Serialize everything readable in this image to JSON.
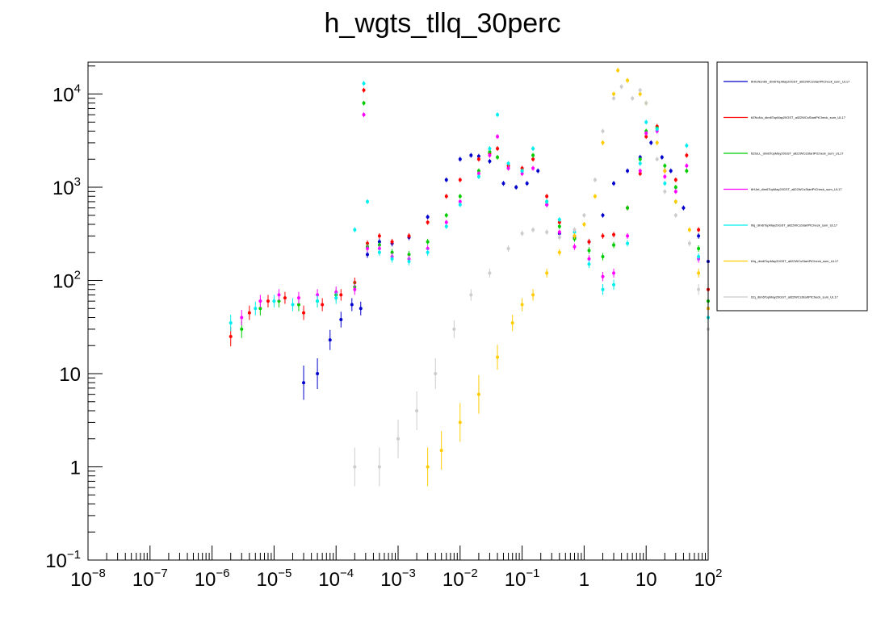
{
  "chart_data": {
    "type": "scatter",
    "title": "h_wgts_tllq_30perc",
    "xlabel": "",
    "ylabel": "",
    "xscale": "log",
    "yscale": "log",
    "xlim": [
      1e-08,
      100
    ],
    "ylim": [
      0.1,
      22000
    ],
    "grid": false,
    "legend_position": "right",
    "x_ticks": [
      {
        "value": 1e-08,
        "base": "10",
        "exp": "−8"
      },
      {
        "value": 1e-07,
        "base": "10",
        "exp": "−7"
      },
      {
        "value": 1e-06,
        "base": "10",
        "exp": "−6"
      },
      {
        "value": 1e-05,
        "base": "10",
        "exp": "−5"
      },
      {
        "value": 0.0001,
        "base": "10",
        "exp": "−4"
      },
      {
        "value": 0.001,
        "base": "10",
        "exp": "−3"
      },
      {
        "value": 0.01,
        "base": "10",
        "exp": "−2"
      },
      {
        "value": 0.1,
        "base": "10",
        "exp": "−1"
      },
      {
        "value": 1,
        "base": "1",
        "exp": ""
      },
      {
        "value": 10,
        "base": "10",
        "exp": ""
      },
      {
        "value": 100,
        "base": "10",
        "exp": "2"
      }
    ],
    "y_ticks": [
      {
        "value": 0.1,
        "base": "10",
        "exp": "−1"
      },
      {
        "value": 1,
        "base": "1",
        "exp": ""
      },
      {
        "value": 10,
        "base": "10",
        "exp": ""
      },
      {
        "value": 100,
        "base": "10",
        "exp": "2"
      },
      {
        "value": 1000,
        "base": "10",
        "exp": "3"
      },
      {
        "value": 10000,
        "base": "10",
        "exp": "4"
      }
    ],
    "series": [
      {
        "legend": "ttHtoNonbb_dim6TopMay20GST_all22WCsStartPtCheck_sum_UL17",
        "color": "#0000cc",
        "points": [
          [
            3e-05,
            8
          ],
          [
            5e-05,
            10
          ],
          [
            8e-05,
            23
          ],
          [
            0.00012,
            38
          ],
          [
            0.00018,
            55
          ],
          [
            0.00025,
            50
          ],
          [
            0.00032,
            190
          ],
          [
            0.0005,
            260
          ],
          [
            0.0008,
            250
          ],
          [
            0.0015,
            290
          ],
          [
            0.003,
            480
          ],
          [
            0.006,
            1200
          ],
          [
            0.01,
            2000
          ],
          [
            0.015,
            2200
          ],
          [
            0.02,
            2150
          ],
          [
            0.03,
            1900
          ],
          [
            0.05,
            1100
          ],
          [
            0.08,
            1000
          ],
          [
            0.12,
            1100
          ],
          [
            0.18,
            1500
          ],
          [
            0.25,
            650
          ],
          [
            0.4,
            320
          ],
          [
            0.7,
            290
          ],
          [
            1.2,
            260
          ],
          [
            2,
            500
          ],
          [
            3,
            1100
          ],
          [
            5,
            1500
          ],
          [
            8,
            2100
          ],
          [
            12,
            3000
          ],
          [
            18,
            2100
          ],
          [
            25,
            1500
          ],
          [
            40,
            600
          ],
          [
            70,
            300
          ],
          [
            100,
            160
          ]
        ]
      },
      {
        "legend": "ttZNuNu_dim6TopMay20GST_all22WCsStartPtCheck_sum_UL17",
        "color": "#ff0000",
        "points": [
          [
            2e-06,
            25
          ],
          [
            4e-06,
            45
          ],
          [
            8e-06,
            60
          ],
          [
            1.5e-05,
            65
          ],
          [
            3e-05,
            45
          ],
          [
            6e-05,
            55
          ],
          [
            0.00012,
            70
          ],
          [
            0.0002,
            95
          ],
          [
            0.00028,
            11000
          ],
          [
            0.00032,
            250
          ],
          [
            0.0005,
            300
          ],
          [
            0.0008,
            260
          ],
          [
            0.0015,
            300
          ],
          [
            0.003,
            420
          ],
          [
            0.006,
            800
          ],
          [
            0.01,
            1200
          ],
          [
            0.02,
            2000
          ],
          [
            0.03,
            2300
          ],
          [
            0.04,
            2600
          ],
          [
            0.06,
            1700
          ],
          [
            0.1,
            1600
          ],
          [
            0.15,
            2000
          ],
          [
            0.25,
            800
          ],
          [
            0.4,
            420
          ],
          [
            0.7,
            300
          ],
          [
            1.2,
            260
          ],
          [
            2,
            300
          ],
          [
            3,
            310
          ],
          [
            5,
            600
          ],
          [
            8,
            1400
          ],
          [
            10,
            3500
          ],
          [
            15,
            4500
          ],
          [
            20,
            1500
          ],
          [
            30,
            1200
          ],
          [
            45,
            2200
          ],
          [
            70,
            350
          ],
          [
            100,
            80
          ]
        ]
      },
      {
        "legend": "ttZtoLL_dim6TopMay20GST_all22WCsStartPtCheck_sum_UL17",
        "color": "#00cc00",
        "points": [
          [
            3e-06,
            30
          ],
          [
            6e-06,
            50
          ],
          [
            1.2e-05,
            60
          ],
          [
            2.5e-05,
            55
          ],
          [
            5e-05,
            60
          ],
          [
            0.0001,
            70
          ],
          [
            0.0002,
            85
          ],
          [
            0.00028,
            8000
          ],
          [
            0.00032,
            230
          ],
          [
            0.0005,
            240
          ],
          [
            0.0008,
            200
          ],
          [
            0.0015,
            190
          ],
          [
            0.003,
            260
          ],
          [
            0.006,
            500
          ],
          [
            0.01,
            800
          ],
          [
            0.02,
            1500
          ],
          [
            0.03,
            2400
          ],
          [
            0.04,
            2100
          ],
          [
            0.06,
            1600
          ],
          [
            0.1,
            1500
          ],
          [
            0.15,
            2200
          ],
          [
            0.25,
            700
          ],
          [
            0.4,
            380
          ],
          [
            0.7,
            280
          ],
          [
            1.2,
            210
          ],
          [
            2,
            180
          ],
          [
            3,
            240
          ],
          [
            5,
            600
          ],
          [
            8,
            2000
          ],
          [
            10,
            4000
          ],
          [
            15,
            4300
          ],
          [
            20,
            1700
          ],
          [
            30,
            1000
          ],
          [
            45,
            1500
          ],
          [
            70,
            220
          ],
          [
            100,
            60
          ]
        ]
      },
      {
        "legend": "ttHJet_dim6TopMay20GST_all22WCsStartPtCheck_sum_UL17",
        "color": "#ff00ff",
        "points": [
          [
            3e-06,
            40
          ],
          [
            6e-06,
            60
          ],
          [
            1.2e-05,
            70
          ],
          [
            2.5e-05,
            65
          ],
          [
            5e-05,
            70
          ],
          [
            0.0001,
            75
          ],
          [
            0.0002,
            80
          ],
          [
            0.00028,
            6000
          ],
          [
            0.00032,
            220
          ],
          [
            0.0005,
            220
          ],
          [
            0.0008,
            180
          ],
          [
            0.0015,
            170
          ],
          [
            0.003,
            220
          ],
          [
            0.006,
            420
          ],
          [
            0.01,
            700
          ],
          [
            0.02,
            1400
          ],
          [
            0.03,
            2200
          ],
          [
            0.04,
            3500
          ],
          [
            0.06,
            1600
          ],
          [
            0.1,
            1400
          ],
          [
            0.15,
            1600
          ],
          [
            0.25,
            650
          ],
          [
            0.4,
            330
          ],
          [
            0.7,
            230
          ],
          [
            1.2,
            170
          ],
          [
            2,
            110
          ],
          [
            3,
            120
          ],
          [
            5,
            300
          ],
          [
            8,
            1500
          ],
          [
            10,
            3800
          ],
          [
            15,
            4000
          ],
          [
            20,
            1300
          ],
          [
            30,
            900
          ],
          [
            45,
            1700
          ],
          [
            70,
            170
          ],
          [
            100,
            50
          ]
        ]
      },
      {
        "legend": "tllq_dim6TopMay20GST_all22WCsStartPtCheck_sum_UL17",
        "color": "#00eeee",
        "points": [
          [
            2e-06,
            35
          ],
          [
            5e-06,
            50
          ],
          [
            1e-05,
            60
          ],
          [
            2e-05,
            55
          ],
          [
            5e-05,
            60
          ],
          [
            0.0001,
            65
          ],
          [
            0.0002,
            350
          ],
          [
            0.00028,
            13000
          ],
          [
            0.00032,
            700
          ],
          [
            0.0005,
            200
          ],
          [
            0.0008,
            170
          ],
          [
            0.0015,
            160
          ],
          [
            0.003,
            200
          ],
          [
            0.006,
            380
          ],
          [
            0.01,
            650
          ],
          [
            0.02,
            1300
          ],
          [
            0.03,
            2600
          ],
          [
            0.04,
            6000
          ],
          [
            0.06,
            1800
          ],
          [
            0.1,
            1500
          ],
          [
            0.15,
            2600
          ],
          [
            0.25,
            700
          ],
          [
            0.4,
            450
          ],
          [
            0.7,
            330
          ],
          [
            1.2,
            150
          ],
          [
            2,
            80
          ],
          [
            3,
            90
          ],
          [
            5,
            250
          ],
          [
            8,
            1800
          ],
          [
            10,
            5000
          ],
          [
            15,
            4200
          ],
          [
            20,
            1100
          ],
          [
            30,
            700
          ],
          [
            45,
            2800
          ],
          [
            70,
            180
          ],
          [
            100,
            40
          ]
        ]
      },
      {
        "legend": "tHq_dim6TopMay20GST_all22WCsStartPtCheck_sum_UL17",
        "color": "#ffcc00",
        "points": [
          [
            0.003,
            1
          ],
          [
            0.005,
            1.5
          ],
          [
            0.01,
            3
          ],
          [
            0.02,
            6
          ],
          [
            0.04,
            15
          ],
          [
            0.07,
            35
          ],
          [
            0.1,
            55
          ],
          [
            0.15,
            70
          ],
          [
            0.25,
            120
          ],
          [
            0.4,
            200
          ],
          [
            0.7,
            300
          ],
          [
            1,
            400
          ],
          [
            1.5,
            800
          ],
          [
            2,
            3000
          ],
          [
            3,
            10000
          ],
          [
            3.5,
            18000
          ],
          [
            5,
            14000
          ],
          [
            8,
            10000
          ],
          [
            10,
            8000
          ],
          [
            15,
            3000
          ],
          [
            20,
            1500
          ],
          [
            30,
            700
          ],
          [
            50,
            350
          ],
          [
            70,
            120
          ],
          [
            100,
            50
          ]
        ]
      },
      {
        "legend": "tZq_dim6TopMay20GST_all22WCsStartPtCheck_sum_UL17",
        "color": "#cccccc",
        "points": [
          [
            0.0002,
            1
          ],
          [
            0.0005,
            1
          ],
          [
            0.001,
            2
          ],
          [
            0.002,
            4
          ],
          [
            0.004,
            10
          ],
          [
            0.008,
            30
          ],
          [
            0.015,
            70
          ],
          [
            0.03,
            120
          ],
          [
            0.06,
            220
          ],
          [
            0.1,
            320
          ],
          [
            0.15,
            350
          ],
          [
            0.25,
            330
          ],
          [
            0.4,
            290
          ],
          [
            0.7,
            350
          ],
          [
            1,
            500
          ],
          [
            1.5,
            1200
          ],
          [
            2,
            4000
          ],
          [
            3,
            9000
          ],
          [
            4,
            12000
          ],
          [
            6,
            9000
          ],
          [
            8,
            11000
          ],
          [
            10,
            8000
          ],
          [
            15,
            2000
          ],
          [
            20,
            900
          ],
          [
            30,
            500
          ],
          [
            50,
            250
          ],
          [
            70,
            80
          ],
          [
            100,
            30
          ]
        ]
      }
    ]
  }
}
